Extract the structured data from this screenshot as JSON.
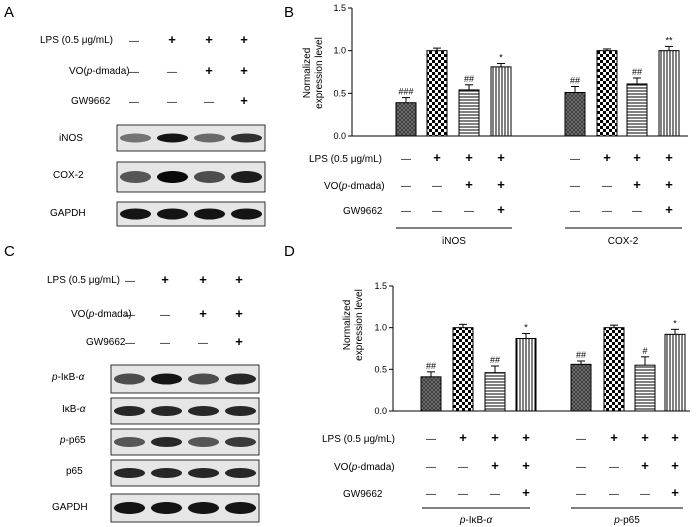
{
  "figure": {
    "panel_letters": [
      "A",
      "B",
      "C",
      "D"
    ],
    "conditions": {
      "lps": "LPS (0.5 μg/mL)",
      "vo_prefix": "VO(",
      "vo_italic": "p",
      "vo_suffix": "-dmada)",
      "gw": "GW9662"
    },
    "symbols": {
      "plus": "+",
      "minus": "—"
    },
    "treatment_pattern": {
      "lps": [
        "—",
        "+",
        "+",
        "+"
      ],
      "vo": [
        "—",
        "—",
        "+",
        "+"
      ],
      "gw": [
        "—",
        "—",
        "—",
        "+"
      ]
    }
  },
  "blots": {
    "A": {
      "proteins": [
        "iNOS",
        "COX-2",
        "GAPDH"
      ]
    },
    "C": {
      "proteins": [
        {
          "pre": "p",
          "main": "-IκB-",
          "italic_end": "α"
        },
        {
          "pre": "",
          "main": "IκB-",
          "italic_end": "α"
        },
        {
          "pre": "p",
          "main": "-p65",
          "italic_end": ""
        },
        {
          "pre": "",
          "main": "p65",
          "italic_end": ""
        },
        {
          "pre": "",
          "main": "GAPDH",
          "italic_end": ""
        }
      ]
    }
  },
  "chart_data": [
    {
      "panel": "B",
      "type": "bar",
      "ylabel": "Normalized expression level",
      "ylim": [
        0,
        1.5
      ],
      "yticks": [
        "0.0",
        "0.5",
        "1.0",
        "1.5"
      ],
      "groups": [
        {
          "label": "iNOS",
          "values": [
            0.39,
            1.0,
            0.54,
            0.81
          ],
          "errors": [
            0.06,
            0.03,
            0.06,
            0.04
          ],
          "sig": [
            "###",
            "",
            "##",
            "*"
          ]
        },
        {
          "label": "COX-2",
          "values": [
            0.51,
            1.0,
            0.61,
            1.0
          ],
          "errors": [
            0.07,
            0.02,
            0.07,
            0.05
          ],
          "sig": [
            "##",
            "",
            "##",
            "**"
          ]
        }
      ]
    },
    {
      "panel": "D",
      "type": "bar",
      "ylabel": "Normalized expression level",
      "ylim": [
        0,
        1.5
      ],
      "yticks": [
        "0.0",
        "0.5",
        "1.0",
        "1.5"
      ],
      "groups": [
        {
          "label_pre": "p",
          "label_main": "-IκB-",
          "label_end": "α",
          "values": [
            0.41,
            1.0,
            0.46,
            0.87
          ],
          "errors": [
            0.06,
            0.04,
            0.08,
            0.06
          ],
          "sig": [
            "##",
            "",
            "##",
            "*"
          ]
        },
        {
          "label_pre": "p",
          "label_main": "-p65",
          "label_end": "",
          "values": [
            0.56,
            1.0,
            0.55,
            0.92
          ],
          "errors": [
            0.04,
            0.03,
            0.1,
            0.06
          ],
          "sig": [
            "##",
            "",
            "#",
            "*"
          ]
        }
      ]
    }
  ]
}
